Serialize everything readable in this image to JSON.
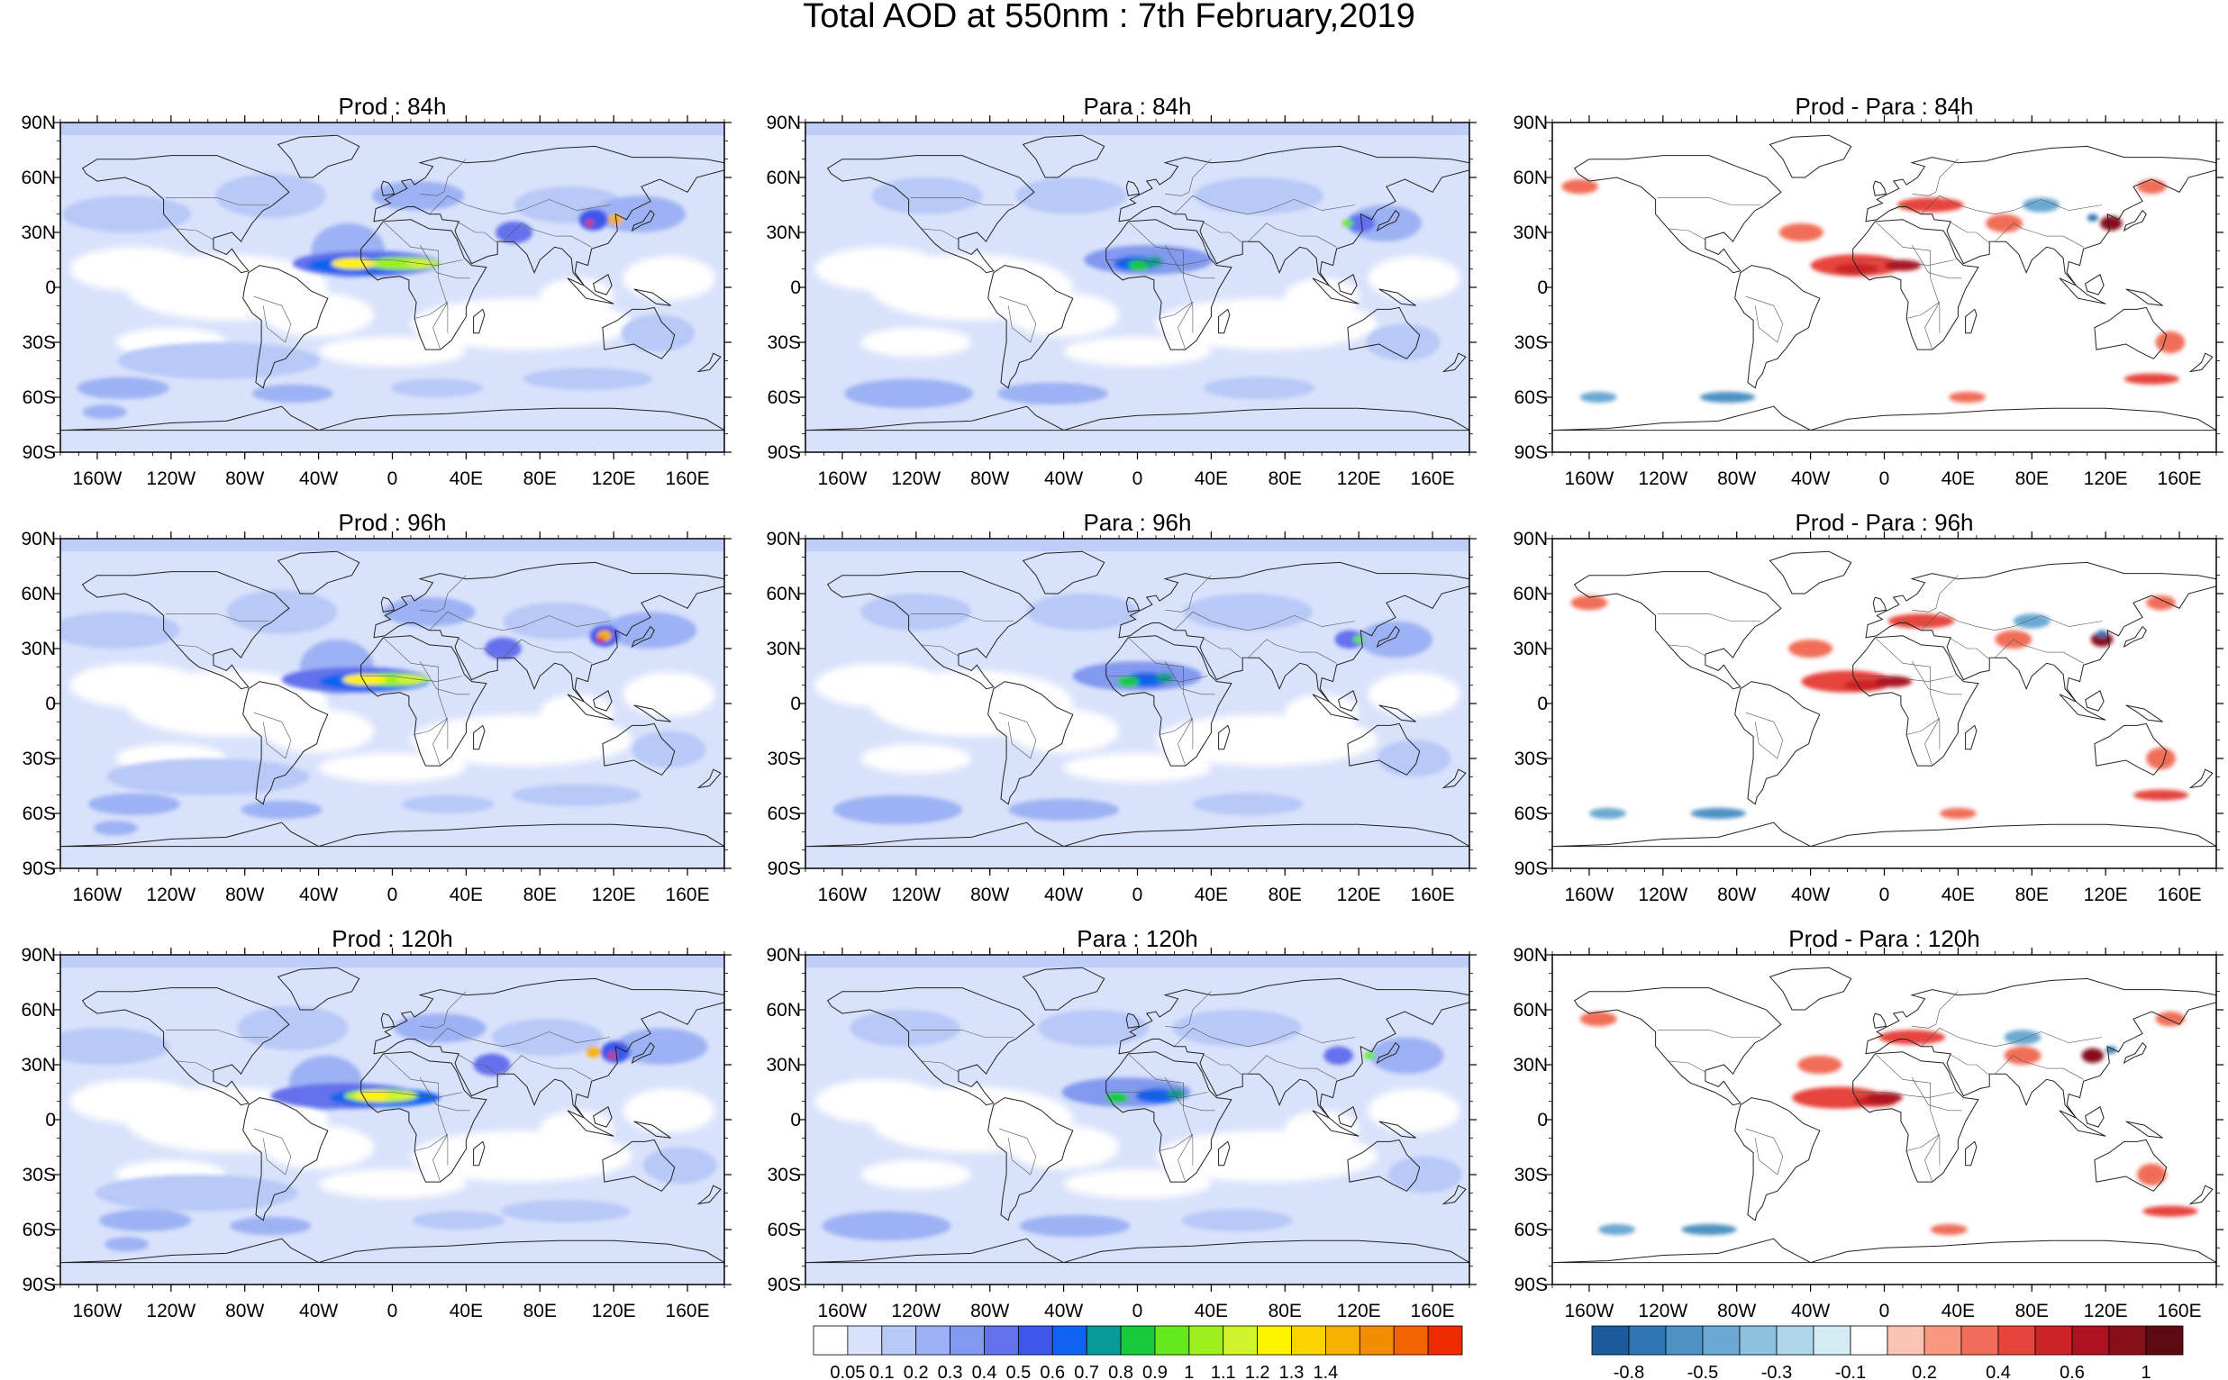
{
  "title": "Total AOD at 550nm : 7th February,2019",
  "columns": [
    {
      "kind": "abs"
    },
    {
      "kind": "abs"
    },
    {
      "kind": "diff"
    }
  ],
  "panel_titles": [
    [
      "Prod : 84h",
      "Para : 84h",
      "Prod - Para : 84h"
    ],
    [
      "Prod : 96h",
      "Para : 96h",
      "Prod - Para : 96h"
    ],
    [
      "Prod : 120h",
      "Para : 120h",
      "Prod - Para : 120h"
    ]
  ],
  "lat_ticks": [
    "90N",
    "60N",
    "30N",
    "0",
    "30S",
    "60S",
    "90S"
  ],
  "lon_ticks": [
    "160W",
    "120W",
    "80W",
    "40W",
    "0",
    "40E",
    "80E",
    "120E",
    "160E"
  ],
  "colorbar_aod": {
    "colors": [
      "#ffffff",
      "#d9e2fb",
      "#b8c8f7",
      "#9db2f4",
      "#8199ef",
      "#6371ec",
      "#3f56ea",
      "#1063f0",
      "#079a98",
      "#17c93b",
      "#66e81e",
      "#9ef01c",
      "#d0f52a",
      "#fff300",
      "#fbd300",
      "#f6b200",
      "#f38d00",
      "#f26400",
      "#f02a00"
    ],
    "labels": [
      "0.05",
      "0.1",
      "0.2",
      "0.3",
      "0.4",
      "0.5",
      "0.6",
      "0.7",
      "0.8",
      "0.9",
      "1",
      "1.1",
      "1.2",
      "1.3",
      "1.4"
    ]
  },
  "colorbar_diff": {
    "colors": [
      "#1c5a9c",
      "#2f75b1",
      "#4d92c3",
      "#6aa9d2",
      "#8cc2de",
      "#b0d7e9",
      "#d6ecf4",
      "#ffffff",
      "#fcc4b5",
      "#f8987f",
      "#f06e59",
      "#e6453e",
      "#cc2327",
      "#ac1220",
      "#86101a",
      "#5e0a12"
    ],
    "labels": [
      "-0.8",
      "-0.5",
      "-0.3",
      "-0.1",
      "0.2",
      "0.4",
      "0.6",
      "1"
    ]
  },
  "colors": {
    "aod_background": "#d9e2fb",
    "aod_low": "#ffffff",
    "coast": "#222222"
  }
}
